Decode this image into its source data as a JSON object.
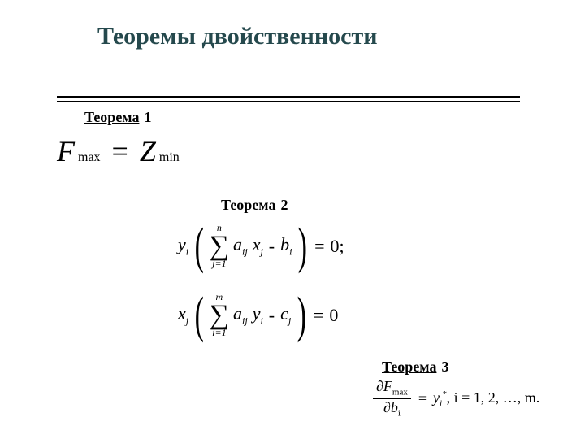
{
  "title": "Теоремы двойственности",
  "theorems": {
    "t1": {
      "word": "Теорема",
      "num": "1"
    },
    "t2": {
      "word": "Теорема",
      "num": "2"
    },
    "t3": {
      "word": "Теорема",
      "num": "3"
    }
  },
  "eq1": {
    "F": "F",
    "Fsub": "max",
    "eq": "=",
    "Z": "Z",
    "Zsub": "min"
  },
  "eq2": {
    "y": "y",
    "yi": "i",
    "lbr": "(",
    "sum_upper": "n",
    "sum_lower": "j=1",
    "sigma": "∑",
    "a": "a",
    "aij": "ij",
    "x": "x",
    "xj": "j",
    "minus": "-",
    "b": "b",
    "bi": "i",
    "rbr": ")",
    "eq": "=",
    "rhs": "0;"
  },
  "eq3": {
    "x": "x",
    "xj": "j",
    "lbr": "(",
    "sum_upper": "m",
    "sum_lower": "i=1",
    "sigma": "∑",
    "a": "a",
    "aij": "ij",
    "y": "y",
    "yi": "i",
    "minus": "-",
    "c": "c",
    "cj": "j",
    "rbr": ")",
    "eq": "=",
    "rhs": "0"
  },
  "eq4": {
    "d": "∂",
    "F": "F",
    "Fsub": "max",
    "b": "b",
    "bi": "i",
    "eq": "=",
    "y": "y",
    "yi": "i",
    "star": "*",
    "tail": ", i = 1, 2, …, m."
  },
  "colors": {
    "title": "#25494d",
    "text": "#1a1a1a",
    "bg": "#ffffff"
  }
}
